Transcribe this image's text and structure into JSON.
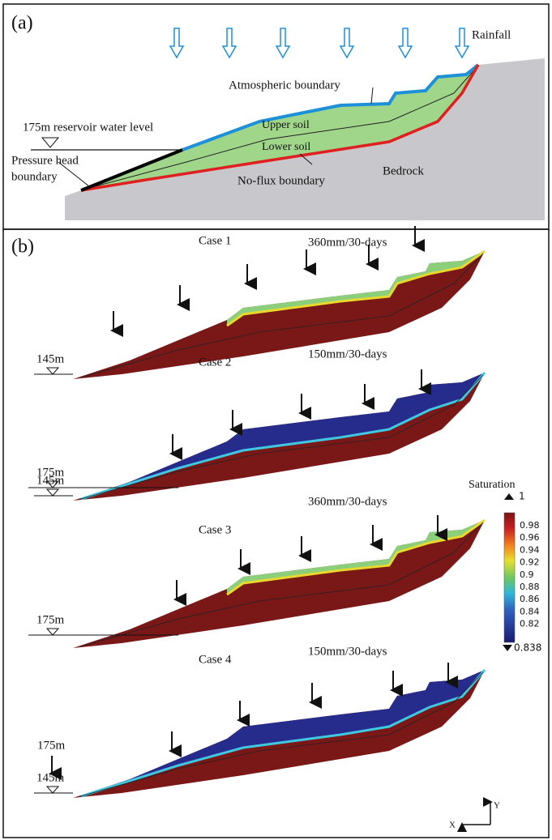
{
  "panel_a": {
    "label": "(a)",
    "rainfall": "Rainfall",
    "atmospheric": "Atmospheric boundary",
    "upper_soil": "Upper soil",
    "lower_soil": "Lower soil",
    "reservoir": "175m  reservoir water level",
    "pressure_head": [
      "Pressure head",
      "boundary"
    ],
    "no_flux": "No-flux boundary",
    "bedrock": "Bedrock"
  },
  "panel_b": {
    "label": "(b)",
    "cases": [
      {
        "title": "Case 1",
        "rainfall": "360mm/30-days",
        "levels": [
          "145m"
        ]
      },
      {
        "title": "Case 2",
        "rainfall": "150mm/30-days",
        "levels": [
          "175m",
          "145m"
        ]
      },
      {
        "title": "Case 3",
        "rainfall": "360mm/30-days",
        "levels": [
          "175m"
        ]
      },
      {
        "title": "Case 4",
        "rainfall": "150mm/30-days",
        "levels": [
          "175m",
          "145m"
        ]
      }
    ],
    "colorbar": {
      "title": "Saturation",
      "max_label": "1",
      "min_label": "0.838",
      "ticks": [
        "0.98",
        "0.96",
        "0.94",
        "0.92",
        "0.9",
        "0.88",
        "0.86",
        "0.84",
        "0.82"
      ]
    },
    "axes": {
      "x": "X",
      "y": "Y"
    }
  }
}
